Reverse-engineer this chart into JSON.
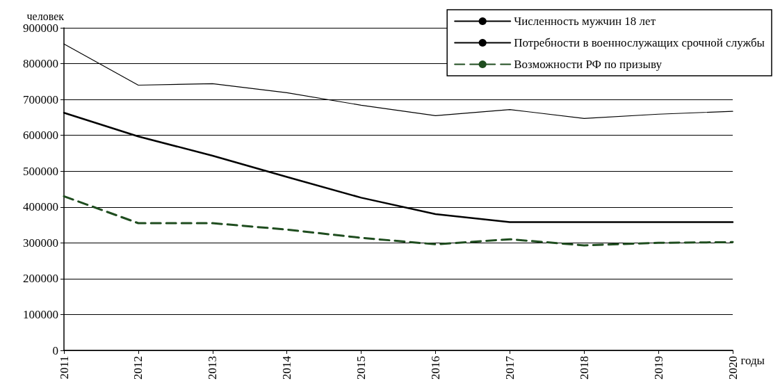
{
  "chart_data": {
    "type": "line",
    "ylabel": "человек",
    "xlabel": "годы",
    "categories": [
      "2011",
      "2012",
      "2013",
      "2014",
      "2015",
      "2016",
      "2017",
      "2018",
      "2019",
      "2020"
    ],
    "series": [
      {
        "name": "Численность мужчин 18 лет",
        "color": "#000000",
        "values": [
          855000,
          740000,
          744000,
          719000,
          684000,
          655000,
          672000,
          647000,
          659000,
          667000
        ]
      },
      {
        "name": "Потребности в военнослужащих срочной службы",
        "color": "#000000",
        "values": [
          663000,
          597000,
          543000,
          484000,
          426000,
          380000,
          358000,
          358000,
          358000,
          358000
        ]
      },
      {
        "name": "Возможности РФ по призыву",
        "color": "#1f4d1f",
        "line_style": "dashed",
        "values": [
          430000,
          355000,
          355000,
          337000,
          314000,
          296000,
          310000,
          293000,
          300000,
          302000
        ]
      }
    ],
    "ylim": [
      0,
      900000
    ],
    "yticks": [
      0,
      100000,
      200000,
      300000,
      400000,
      500000,
      600000,
      700000,
      800000,
      900000
    ],
    "grid": "y",
    "legend": "top right",
    "marker": "none"
  }
}
